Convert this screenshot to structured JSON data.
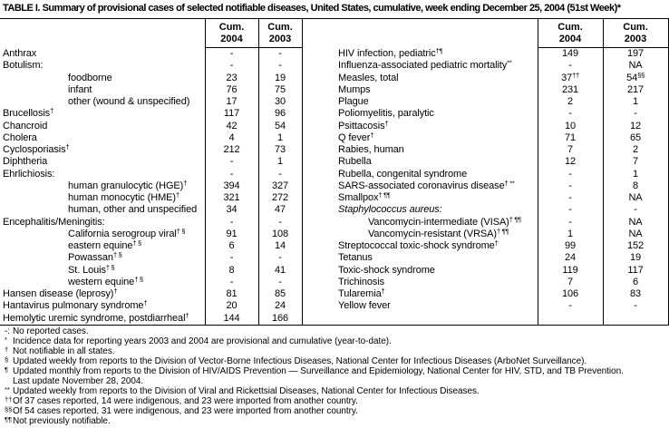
{
  "title": "TABLE I. Summary of provisional cases of selected notifiable diseases, United States, cumulative, week ending December 25, 2004 (51st Week)*",
  "header": {
    "cum": "Cum.",
    "y2004": "2004",
    "y2003": "2003"
  },
  "left_rows": [
    {
      "label": "Anthrax",
      "v2004": "-",
      "v2003": "-"
    },
    {
      "label": "Botulism:",
      "v2004": "-",
      "v2003": "-"
    },
    {
      "label": "foodborne",
      "indent": 1,
      "v2004": "23",
      "v2003": "19"
    },
    {
      "label": "infant",
      "indent": 1,
      "v2004": "76",
      "v2003": "75"
    },
    {
      "label": "other (wound & unspecified)",
      "indent": 1,
      "v2004": "17",
      "v2003": "30"
    },
    {
      "label": "Brucellosis",
      "sup": "†",
      "v2004": "117",
      "v2003": "96"
    },
    {
      "label": "Chancroid",
      "v2004": "42",
      "v2003": "54"
    },
    {
      "label": "Cholera",
      "v2004": "4",
      "v2003": "1"
    },
    {
      "label": "Cyclosporiasis",
      "sup": "†",
      "v2004": "212",
      "v2003": "73"
    },
    {
      "label": "Diphtheria",
      "v2004": "-",
      "v2003": "1"
    },
    {
      "label": "Ehrlichiosis:",
      "v2004": "-",
      "v2003": "-"
    },
    {
      "label": "human granulocytic (HGE)",
      "sup": "†",
      "indent": 1,
      "v2004": "394",
      "v2003": "327"
    },
    {
      "label": "human monocytic (HME)",
      "sup": "†",
      "indent": 1,
      "v2004": "321",
      "v2003": "272"
    },
    {
      "label": "human, other and unspecified",
      "indent": 1,
      "v2004": "34",
      "v2003": "47"
    },
    {
      "label": "Encephalitis/Meningitis:",
      "v2004": "-",
      "v2003": "-"
    },
    {
      "label": "California serogroup viral",
      "sup": "† §",
      "indent": 1,
      "v2004": "91",
      "v2003": "108"
    },
    {
      "label": "eastern equine",
      "sup": "† §",
      "indent": 1,
      "v2004": "6",
      "v2003": "14"
    },
    {
      "label": "Powassan",
      "sup": "† §",
      "indent": 1,
      "v2004": "-",
      "v2003": "-"
    },
    {
      "label": "St. Louis",
      "sup": "† §",
      "indent": 1,
      "v2004": "8",
      "v2003": "41"
    },
    {
      "label": "western equine",
      "sup": "† §",
      "indent": 1,
      "v2004": "-",
      "v2003": "-"
    },
    {
      "label": "Hansen disease (leprosy)",
      "sup": "†",
      "v2004": "81",
      "v2003": "85"
    },
    {
      "label": "Hantavirus pulmonary syndrome",
      "sup": "†",
      "v2004": "20",
      "v2003": "24"
    },
    {
      "label": "Hemolytic uremic syndrome, postdiarrheal",
      "sup": "†",
      "v2004": "144",
      "v2003": "166"
    }
  ],
  "right_rows": [
    {
      "label": "HIV infection, pediatric",
      "sup": "†¶",
      "v2004": "149",
      "v2003": "197"
    },
    {
      "label": "Influenza-associated pediatric mortality",
      "sup": "**",
      "v2004": "-",
      "v2003": "NA"
    },
    {
      "label": "Measles, total",
      "v2004": "37",
      "v2004_sup": "††",
      "v2003": "54",
      "v2003_sup": "§§"
    },
    {
      "label": "Mumps",
      "v2004": "231",
      "v2003": "217"
    },
    {
      "label": "Plague",
      "v2004": "2",
      "v2003": "1"
    },
    {
      "label": "Poliomyelitis, paralytic",
      "v2004": "-",
      "v2003": "-"
    },
    {
      "label": "Psittacosis",
      "sup": "†",
      "v2004": "10",
      "v2003": "12"
    },
    {
      "label": "Q fever",
      "sup": "†",
      "v2004": "71",
      "v2003": "65"
    },
    {
      "label": "Rabies, human",
      "v2004": "7",
      "v2003": "2"
    },
    {
      "label": "Rubella",
      "v2004": "12",
      "v2003": "7"
    },
    {
      "label": "Rubella, congenital syndrome",
      "v2004": "-",
      "v2003": "1"
    },
    {
      "label": "SARS-associated coronavirus disease",
      "sup": "† **",
      "v2004": "-",
      "v2003": "8"
    },
    {
      "label": "Smallpox",
      "sup": "† ¶¶",
      "v2004": "-",
      "v2003": "NA"
    },
    {
      "label": "Staphylococcus aureus:",
      "italic": true,
      "v2004": "-",
      "v2003": "-"
    },
    {
      "label": "Vancomycin-intermediate (VISA)",
      "sup": "† ¶¶",
      "indent": 1,
      "v2004": "-",
      "v2003": "NA"
    },
    {
      "label": "Vancomycin-resistant (VRSA)",
      "sup": "† ¶¶",
      "indent": 1,
      "v2004": "1",
      "v2003": "NA"
    },
    {
      "label": "Streptococcal toxic-shock syndrome",
      "sup": "†",
      "v2004": "99",
      "v2003": "152"
    },
    {
      "label": "Tetanus",
      "v2004": "24",
      "v2003": "19"
    },
    {
      "label": "Toxic-shock syndrome",
      "v2004": "119",
      "v2003": "117"
    },
    {
      "label": "Trichinosis",
      "v2004": "7",
      "v2003": "6"
    },
    {
      "label": "Tularemia",
      "sup": "†",
      "v2004": "106",
      "v2003": "83"
    },
    {
      "label": "Yellow fever",
      "v2004": "-",
      "v2003": "-"
    }
  ],
  "footnotes": [
    {
      "marker": "-:",
      "baseline": true,
      "lines": [
        "No reported cases."
      ]
    },
    {
      "marker": "*",
      "lines": [
        "Incidence data for reporting years 2003 and 2004 are provisional and cumulative (year-to-date)."
      ]
    },
    {
      "marker": "†",
      "lines": [
        "Not notifiable in all states."
      ]
    },
    {
      "marker": "§",
      "lines": [
        "Updated weekly from reports to the Division of Vector-Borne Infectious Diseases, National Center for Infectious Diseases (ArboNet Surveillance)."
      ]
    },
    {
      "marker": "¶",
      "lines": [
        "Updated monthly from reports to the Division of HIV/AIDS Prevention — Surveillance and Epidemiology, National Center for HIV, STD, and TB Prevention.",
        "Last update November 28, 2004."
      ]
    },
    {
      "marker": "**",
      "lines": [
        "Updated weekly from reports to the Division of Viral and Rickettsial Diseases, National Center for Infectious Diseases."
      ]
    },
    {
      "marker": "††",
      "lines": [
        "Of 37 cases reported, 14 were indigenous, and 23 were imported from another country."
      ]
    },
    {
      "marker": "§§",
      "lines": [
        "Of 54 cases reported, 31 were indigenous, and 23 were imported from another country."
      ]
    },
    {
      "marker": "¶¶",
      "lines": [
        "Not previously notifiable."
      ]
    }
  ]
}
